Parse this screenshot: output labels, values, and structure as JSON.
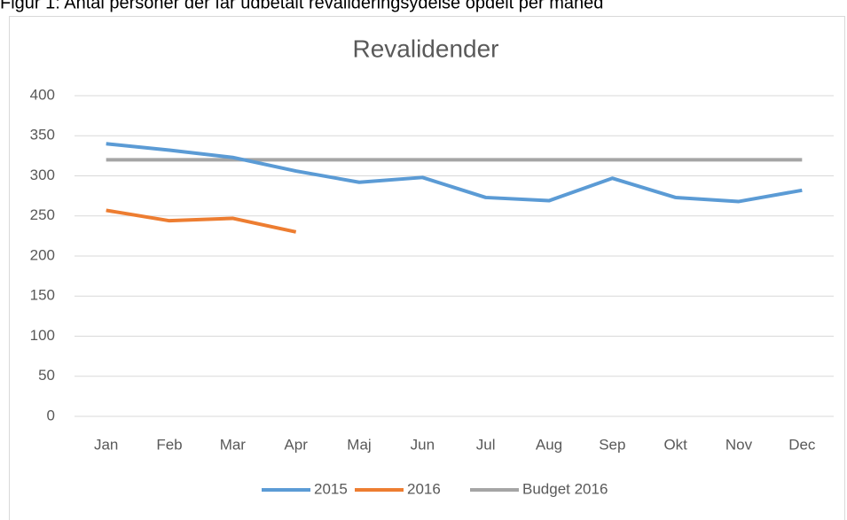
{
  "caption": "Figur 1: Antal personer der får udbetalt revalideringsydelse opdelt per måned",
  "chart_data": {
    "type": "line",
    "title": "Revalidender",
    "categories": [
      "Jan",
      "Feb",
      "Mar",
      "Apr",
      "Maj",
      "Jun",
      "Jul",
      "Aug",
      "Sep",
      "Okt",
      "Nov",
      "Dec"
    ],
    "series": [
      {
        "name": "2015",
        "color": "#5b9bd5",
        "values": [
          340,
          332,
          323,
          306,
          292,
          298,
          273,
          269,
          297,
          273,
          268,
          282
        ]
      },
      {
        "name": "2016",
        "color": "#ed7d31",
        "values": [
          257,
          244,
          247,
          230,
          null,
          null,
          null,
          null,
          null,
          null,
          null,
          null
        ]
      },
      {
        "name": "Budget 2016",
        "color": "#a5a5a5",
        "values": [
          320,
          320,
          320,
          320,
          320,
          320,
          320,
          320,
          320,
          320,
          320,
          320
        ]
      }
    ],
    "ylim": [
      0,
      400
    ],
    "yticks": [
      0,
      50,
      100,
      150,
      200,
      250,
      300,
      350,
      400
    ],
    "grid": true,
    "legend": "bottom"
  }
}
